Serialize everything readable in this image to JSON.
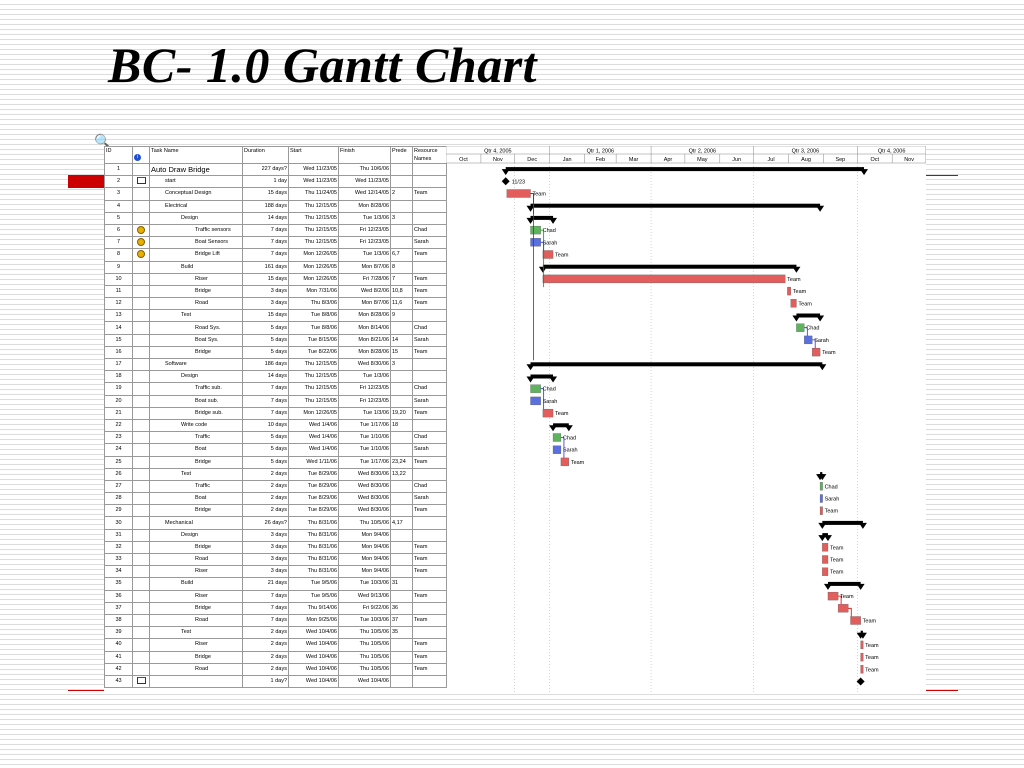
{
  "slide": {
    "title": "BC- 1.0 Gantt Chart"
  },
  "colors": {
    "summary_bar": "#000000",
    "team_bar": "#e35d5d",
    "chad_bar": "#5fb35f",
    "sarah_bar": "#5a6fe0",
    "link_red": "#e00000",
    "link_blue": "#3030d0",
    "link_green": "#00a000",
    "accent": "#cc0000"
  },
  "icons": {
    "zoom": "magnifier-icon",
    "info": "info-icon",
    "note": "note-icon",
    "resource": "resource-icon"
  },
  "table": {
    "columns": [
      "ID",
      "",
      "Task Name",
      "Duration",
      "Start",
      "Finish",
      "Prede",
      "Resource Names"
    ],
    "rows": [
      {
        "id": "1",
        "ind": "",
        "name": "Auto Draw Bridge",
        "level": 0,
        "duration": "227 days?",
        "start": "Wed 11/23/05",
        "finish": "Thu 10/6/06",
        "pred": "",
        "res": ""
      },
      {
        "id": "2",
        "ind": "note",
        "name": "start",
        "level": 1,
        "duration": "1 day",
        "start": "Wed 11/23/05",
        "finish": "Wed 11/23/05",
        "pred": "",
        "res": ""
      },
      {
        "id": "3",
        "ind": "",
        "name": "Conceptual Design",
        "level": 1,
        "duration": "15 days",
        "start": "Thu 11/24/05",
        "finish": "Wed 12/14/05",
        "pred": "2",
        "res": "Team"
      },
      {
        "id": "4",
        "ind": "",
        "name": "Electrical",
        "level": 1,
        "duration": "188 days",
        "start": "Thu 12/15/05",
        "finish": "Mon 8/28/06",
        "pred": "",
        "res": ""
      },
      {
        "id": "5",
        "ind": "",
        "name": "Design",
        "level": 2,
        "duration": "14 days",
        "start": "Thu 12/15/05",
        "finish": "Tue 1/3/06",
        "pred": "3",
        "res": ""
      },
      {
        "id": "6",
        "ind": "res",
        "name": "Traffic sensors",
        "level": 3,
        "duration": "7 days",
        "start": "Thu 12/15/05",
        "finish": "Fri 12/23/05",
        "pred": "",
        "res": "Chad"
      },
      {
        "id": "7",
        "ind": "res",
        "name": "Boat Sensors",
        "level": 3,
        "duration": "7 days",
        "start": "Thu 12/15/05",
        "finish": "Fri 12/23/05",
        "pred": "",
        "res": "Sarah"
      },
      {
        "id": "8",
        "ind": "res",
        "name": "Bridge Lift",
        "level": 3,
        "duration": "7 days",
        "start": "Mon 12/26/05",
        "finish": "Tue 1/3/06",
        "pred": "6,7",
        "res": "Team"
      },
      {
        "id": "9",
        "ind": "",
        "name": "Build",
        "level": 2,
        "duration": "161 days",
        "start": "Mon 12/26/05",
        "finish": "Mon 8/7/06",
        "pred": "8",
        "res": ""
      },
      {
        "id": "10",
        "ind": "",
        "name": "Riser",
        "level": 3,
        "duration": "15 days",
        "start": "Mon 12/26/05",
        "finish": "Fri 7/28/06",
        "pred": "7",
        "res": "Team"
      },
      {
        "id": "11",
        "ind": "",
        "name": "Bridge",
        "level": 3,
        "duration": "3 days",
        "start": "Mon 7/31/06",
        "finish": "Wed 8/2/06",
        "pred": "10,8",
        "res": "Team"
      },
      {
        "id": "12",
        "ind": "",
        "name": "Road",
        "level": 3,
        "duration": "3 days",
        "start": "Thu 8/3/06",
        "finish": "Mon 8/7/06",
        "pred": "11,6",
        "res": "Team"
      },
      {
        "id": "13",
        "ind": "",
        "name": "Test",
        "level": 2,
        "duration": "15 days",
        "start": "Tue 8/8/06",
        "finish": "Mon 8/28/06",
        "pred": "9",
        "res": ""
      },
      {
        "id": "14",
        "ind": "",
        "name": "Road Sys.",
        "level": 3,
        "duration": "5 days",
        "start": "Tue 8/8/06",
        "finish": "Mon 8/14/06",
        "pred": "",
        "res": "Chad"
      },
      {
        "id": "15",
        "ind": "",
        "name": "Boat Sys.",
        "level": 3,
        "duration": "5 days",
        "start": "Tue 8/15/06",
        "finish": "Mon 8/21/06",
        "pred": "14",
        "res": "Sarah"
      },
      {
        "id": "16",
        "ind": "",
        "name": "Bridge",
        "level": 3,
        "duration": "5 days",
        "start": "Tue 8/22/06",
        "finish": "Mon 8/28/06",
        "pred": "15",
        "res": "Team"
      },
      {
        "id": "17",
        "ind": "",
        "name": "Software",
        "level": 1,
        "duration": "186 days",
        "start": "Thu 12/15/05",
        "finish": "Wed 8/30/06",
        "pred": "3",
        "res": ""
      },
      {
        "id": "18",
        "ind": "",
        "name": "Design",
        "level": 2,
        "duration": "14 days",
        "start": "Thu 12/15/05",
        "finish": "Tue 1/3/06",
        "pred": "",
        "res": ""
      },
      {
        "id": "19",
        "ind": "",
        "name": "Traffic sub.",
        "level": 3,
        "duration": "7 days",
        "start": "Thu 12/15/05",
        "finish": "Fri 12/23/05",
        "pred": "",
        "res": "Chad"
      },
      {
        "id": "20",
        "ind": "",
        "name": "Boat sub.",
        "level": 3,
        "duration": "7 days",
        "start": "Thu 12/15/05",
        "finish": "Fri 12/23/05",
        "pred": "",
        "res": "Sarah"
      },
      {
        "id": "21",
        "ind": "",
        "name": "Bridge sub.",
        "level": 3,
        "duration": "7 days",
        "start": "Mon 12/26/05",
        "finish": "Tue 1/3/06",
        "pred": "19,20",
        "res": "Team"
      },
      {
        "id": "22",
        "ind": "",
        "name": "Write code",
        "level": 2,
        "duration": "10 days",
        "start": "Wed 1/4/06",
        "finish": "Tue 1/17/06",
        "pred": "18",
        "res": ""
      },
      {
        "id": "23",
        "ind": "",
        "name": "Traffic",
        "level": 3,
        "duration": "5 days",
        "start": "Wed 1/4/06",
        "finish": "Tue 1/10/06",
        "pred": "",
        "res": "Chad"
      },
      {
        "id": "24",
        "ind": "",
        "name": "Boat",
        "level": 3,
        "duration": "5 days",
        "start": "Wed 1/4/06",
        "finish": "Tue 1/10/06",
        "pred": "",
        "res": "Sarah"
      },
      {
        "id": "25",
        "ind": "",
        "name": "Bridge",
        "level": 3,
        "duration": "5 days",
        "start": "Wed 1/11/06",
        "finish": "Tue 1/17/06",
        "pred": "23,24",
        "res": "Team"
      },
      {
        "id": "26",
        "ind": "",
        "name": "Test",
        "level": 2,
        "duration": "2 days",
        "start": "Tue 8/29/06",
        "finish": "Wed 8/30/06",
        "pred": "13,22",
        "res": ""
      },
      {
        "id": "27",
        "ind": "",
        "name": "Traffic",
        "level": 3,
        "duration": "2 days",
        "start": "Tue 8/29/06",
        "finish": "Wed 8/30/06",
        "pred": "",
        "res": "Chad"
      },
      {
        "id": "28",
        "ind": "",
        "name": "Boat",
        "level": 3,
        "duration": "2 days",
        "start": "Tue 8/29/06",
        "finish": "Wed 8/30/06",
        "pred": "",
        "res": "Sarah"
      },
      {
        "id": "29",
        "ind": "",
        "name": "Bridge",
        "level": 3,
        "duration": "2 days",
        "start": "Tue 8/29/06",
        "finish": "Wed 8/30/06",
        "pred": "",
        "res": "Team"
      },
      {
        "id": "30",
        "ind": "",
        "name": "Mechanical",
        "level": 1,
        "duration": "26 days?",
        "start": "Thu 8/31/06",
        "finish": "Thu 10/5/06",
        "pred": "4,17",
        "res": ""
      },
      {
        "id": "31",
        "ind": "",
        "name": "Design",
        "level": 2,
        "duration": "3 days",
        "start": "Thu 8/31/06",
        "finish": "Mon 9/4/06",
        "pred": "",
        "res": ""
      },
      {
        "id": "32",
        "ind": "",
        "name": "Bridge",
        "level": 3,
        "duration": "3 days",
        "start": "Thu 8/31/06",
        "finish": "Mon 9/4/06",
        "pred": "",
        "res": "Team"
      },
      {
        "id": "33",
        "ind": "",
        "name": "Road",
        "level": 3,
        "duration": "3 days",
        "start": "Thu 8/31/06",
        "finish": "Mon 9/4/06",
        "pred": "",
        "res": "Team"
      },
      {
        "id": "34",
        "ind": "",
        "name": "Riser",
        "level": 3,
        "duration": "3 days",
        "start": "Thu 8/31/06",
        "finish": "Mon 9/4/06",
        "pred": "",
        "res": "Team"
      },
      {
        "id": "35",
        "ind": "",
        "name": "Build",
        "level": 2,
        "duration": "21 days",
        "start": "Tue 9/5/06",
        "finish": "Tue 10/3/06",
        "pred": "31",
        "res": ""
      },
      {
        "id": "36",
        "ind": "",
        "name": "Riser",
        "level": 3,
        "duration": "7 days",
        "start": "Tue 9/5/06",
        "finish": "Wed 9/13/06",
        "pred": "",
        "res": "Team"
      },
      {
        "id": "37",
        "ind": "",
        "name": "Bridge",
        "level": 3,
        "duration": "7 days",
        "start": "Thu 9/14/06",
        "finish": "Fri 9/22/06",
        "pred": "36",
        "res": ""
      },
      {
        "id": "38",
        "ind": "",
        "name": "Road",
        "level": 3,
        "duration": "7 days",
        "start": "Mon 9/25/06",
        "finish": "Tue 10/3/06",
        "pred": "37",
        "res": "Team"
      },
      {
        "id": "39",
        "ind": "",
        "name": "Test",
        "level": 2,
        "duration": "2 days",
        "start": "Wed 10/4/06",
        "finish": "Thu 10/5/06",
        "pred": "35",
        "res": ""
      },
      {
        "id": "40",
        "ind": "",
        "name": "Riser",
        "level": 3,
        "duration": "2 days",
        "start": "Wed 10/4/06",
        "finish": "Thu 10/5/06",
        "pred": "",
        "res": "Team"
      },
      {
        "id": "41",
        "ind": "",
        "name": "Bridge",
        "level": 3,
        "duration": "2 days",
        "start": "Wed 10/4/06",
        "finish": "Thu 10/5/06",
        "pred": "",
        "res": "Team"
      },
      {
        "id": "42",
        "ind": "",
        "name": "Road",
        "level": 3,
        "duration": "2 days",
        "start": "Wed 10/4/06",
        "finish": "Thu 10/5/06",
        "pred": "",
        "res": "Team"
      },
      {
        "id": "43",
        "ind": "note",
        "name": "",
        "level": 1,
        "duration": "1 day?",
        "start": "Wed 10/4/06",
        "finish": "Wed 10/4/06",
        "pred": "",
        "res": ""
      }
    ]
  },
  "timeline": {
    "quarters": [
      "Qtr 4, 2005",
      "Qtr 1, 2006",
      "Qtr 2, 2006",
      "Qtr 3, 2006",
      "Qtr 4, 2006"
    ],
    "months": [
      "Oct",
      "Nov",
      "Dec",
      "Jan",
      "Feb",
      "Mar",
      "Apr",
      "May",
      "Jun",
      "Jul",
      "Aug",
      "Sep",
      "Oct",
      "Nov"
    ],
    "milestone_label": "11/23"
  }
}
